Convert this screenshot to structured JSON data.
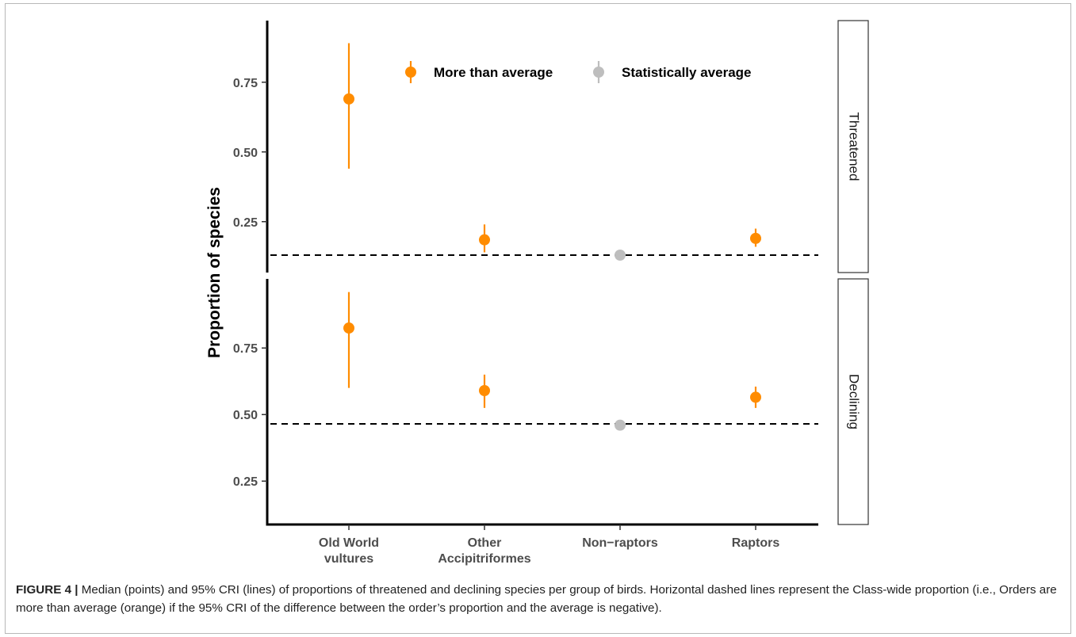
{
  "chart_data": {
    "type": "scatter",
    "subtype": "point-range faceted",
    "ylabel": "Proportion of species",
    "categories": [
      "Old World\nvultures",
      "Other\nAccipitriformes",
      "Non−raptors",
      "Raptors"
    ],
    "legend": {
      "placement": "top-center",
      "entries": [
        {
          "label": "More than average",
          "color": "#ff8c00"
        },
        {
          "label": "Statistically average",
          "color": "#bebebe"
        }
      ]
    },
    "facets": [
      {
        "strip": "Threatened",
        "ylim": [
          0.13,
          1.0
        ],
        "yticks": [
          "0.25",
          "0.50",
          "0.75"
        ],
        "ytick_values": [
          0.25,
          0.5,
          0.75
        ],
        "reference_line": 0.13,
        "points": [
          {
            "category": 0,
            "median": 0.69,
            "lower": 0.44,
            "upper": 0.89,
            "group": 0
          },
          {
            "category": 1,
            "median": 0.185,
            "lower": 0.14,
            "upper": 0.24,
            "group": 0
          },
          {
            "category": 2,
            "median": 0.13,
            "lower": 0.125,
            "upper": 0.135,
            "group": 1
          },
          {
            "category": 3,
            "median": 0.19,
            "lower": 0.16,
            "upper": 0.225,
            "group": 0
          }
        ]
      },
      {
        "strip": "Declining",
        "ylim": [
          0.13,
          1.0
        ],
        "yticks": [
          "0.25",
          "0.50",
          "0.75"
        ],
        "ytick_values": [
          0.25,
          0.5,
          0.75
        ],
        "reference_line": 0.465,
        "points": [
          {
            "category": 0,
            "median": 0.825,
            "lower": 0.6,
            "upper": 0.96,
            "group": 0
          },
          {
            "category": 1,
            "median": 0.59,
            "lower": 0.525,
            "upper": 0.65,
            "group": 0
          },
          {
            "category": 2,
            "median": 0.46,
            "lower": 0.455,
            "upper": 0.465,
            "group": 1
          },
          {
            "category": 3,
            "median": 0.565,
            "lower": 0.525,
            "upper": 0.605,
            "group": 0
          }
        ]
      }
    ]
  },
  "caption": {
    "label": "FIGURE 4 |",
    "text": "Median (points) and 95% CRI (lines) of proportions of threatened and declining species per group of birds. Horizontal dashed lines represent the Class-wide proportion (i.e., Orders are more than average (orange) if the 95% CRI of the difference between the order’s proportion and the average is negative)."
  }
}
